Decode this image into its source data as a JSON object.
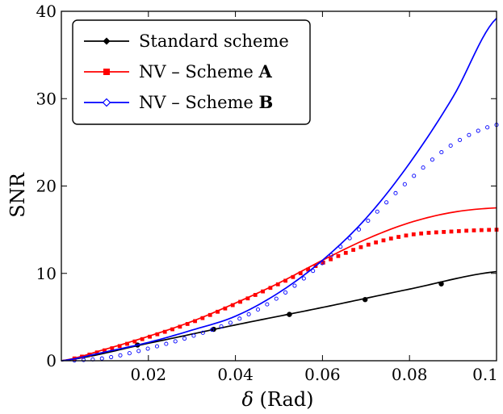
{
  "chart_data": {
    "type": "line",
    "title": "",
    "xlabel": {
      "symbol": "δ",
      "unit": " (Rad)"
    },
    "ylabel": "SNR",
    "xlim": [
      0,
      0.1
    ],
    "ylim": [
      0,
      40
    ],
    "xticks": [
      0.02,
      0.04,
      0.06,
      0.08,
      0.1
    ],
    "xtick_labels": [
      "0.02",
      "0.04",
      "0.06",
      "0.08",
      "0.1"
    ],
    "yticks": [
      0,
      10,
      20,
      30,
      40
    ],
    "ytick_labels": [
      "0",
      "10",
      "20",
      "30",
      "40"
    ],
    "grid": false,
    "legend_position": "top-left",
    "legend": [
      {
        "text": "Standard scheme",
        "bold": "",
        "color": "#000000",
        "marker": "diamond"
      },
      {
        "text": "NV – Scheme ",
        "bold": "A",
        "color": "#ff0000",
        "marker": "square"
      },
      {
        "text": "NV – Scheme ",
        "bold": "B",
        "color": "#0000ff",
        "marker": "circle-open"
      }
    ],
    "series": [
      {
        "key": "standard-theory",
        "color": "#000000",
        "style": "line",
        "x": [
          0,
          0.02,
          0.04,
          0.06,
          0.08,
          0.1
        ],
        "y": [
          0,
          2.0,
          4.1,
          6.1,
          8.2,
          10.2
        ]
      },
      {
        "key": "standard-sim",
        "color": "#000000",
        "style": "dot",
        "x": [
          0.0175,
          0.035,
          0.0524,
          0.0698,
          0.0873
        ],
        "y": [
          1.8,
          3.6,
          5.3,
          7.0,
          8.8
        ]
      },
      {
        "key": "scheme-a-theory",
        "color": "#ff0000",
        "style": "line",
        "x": [
          0,
          0.01,
          0.02,
          0.03,
          0.04,
          0.05,
          0.06,
          0.07,
          0.08,
          0.09,
          0.1
        ],
        "y": [
          0,
          1.3,
          2.8,
          4.5,
          6.6,
          8.9,
          11.5,
          13.9,
          15.8,
          17.0,
          17.5
        ]
      },
      {
        "key": "scheme-a-sim",
        "color": "#ff0000",
        "style": "square",
        "x": [
          0,
          0.01,
          0.02,
          0.03,
          0.04,
          0.05,
          0.06,
          0.07,
          0.08,
          0.09,
          0.1
        ],
        "y": [
          0,
          1.2,
          2.7,
          4.4,
          6.5,
          8.8,
          11.2,
          13.2,
          14.4,
          14.8,
          15.0
        ]
      },
      {
        "key": "scheme-b-theory",
        "color": "#0000ff",
        "style": "line",
        "x": [
          0,
          0.01,
          0.02,
          0.03,
          0.04,
          0.05,
          0.06,
          0.07,
          0.08,
          0.09,
          0.1
        ],
        "y": [
          0,
          1.0,
          2.1,
          3.5,
          5.1,
          7.8,
          11.5,
          16.3,
          22.6,
          30.2,
          39.2
        ]
      },
      {
        "key": "scheme-b-sim",
        "color": "#0000ff",
        "style": "circle",
        "x": [
          0,
          0.01,
          0.02,
          0.03,
          0.04,
          0.05,
          0.06,
          0.07,
          0.08,
          0.09,
          0.1
        ],
        "y": [
          0,
          0.3,
          1.4,
          2.8,
          4.6,
          7.3,
          11.2,
          15.8,
          20.7,
          24.8,
          27.0
        ]
      }
    ]
  }
}
